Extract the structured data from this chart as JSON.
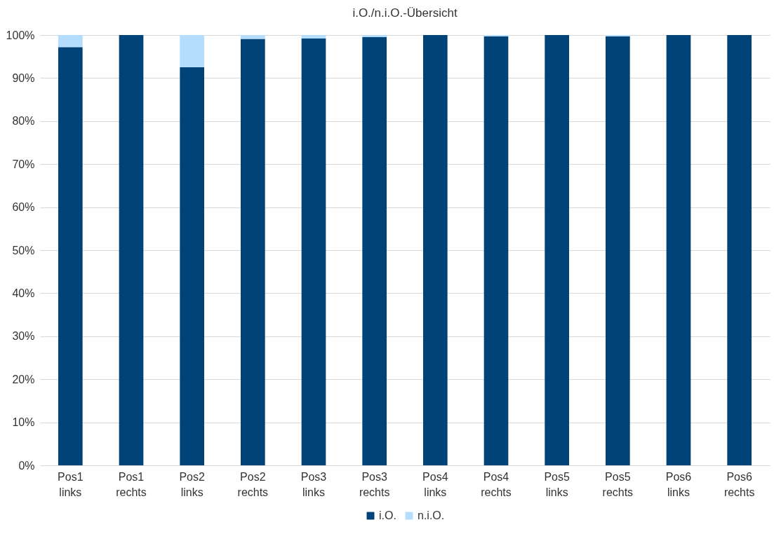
{
  "chart_data": {
    "type": "bar",
    "title": "i.O./n.i.O.-Übersicht",
    "stacked": true,
    "categories": [
      "Pos1 links",
      "Pos1 rechts",
      "Pos2 links",
      "Pos2 rechts",
      "Pos3 links",
      "Pos3 rechts",
      "Pos4 links",
      "Pos4 rechts",
      "Pos5 links",
      "Pos5 rechts",
      "Pos6 links",
      "Pos6 rechts"
    ],
    "series": [
      {
        "name": "i.O.",
        "color": "#004379",
        "values": [
          97.2,
          100,
          92.5,
          99.1,
          99.2,
          99.5,
          100,
          99.7,
          100,
          99.7,
          100,
          100
        ]
      },
      {
        "name": "n.i.O.",
        "color": "#b3dcfd",
        "values": [
          2.8,
          0,
          7.5,
          0.9,
          0.8,
          0.5,
          0,
          0.3,
          0,
          0.3,
          0,
          0
        ]
      }
    ],
    "ylim": [
      0,
      100
    ],
    "yticks": [
      {
        "value": 0,
        "label": "0%"
      },
      {
        "value": 10,
        "label": "10%"
      },
      {
        "value": 20,
        "label": "20%"
      },
      {
        "value": 30,
        "label": "30%"
      },
      {
        "value": 40,
        "label": "40%"
      },
      {
        "value": 50,
        "label": "50%"
      },
      {
        "value": 60,
        "label": "60%"
      },
      {
        "value": 70,
        "label": "70%"
      },
      {
        "value": 80,
        "label": "80%"
      },
      {
        "value": 90,
        "label": "90%"
      },
      {
        "value": 100,
        "label": "100%"
      }
    ],
    "grid": "y",
    "legend": "bottom"
  }
}
